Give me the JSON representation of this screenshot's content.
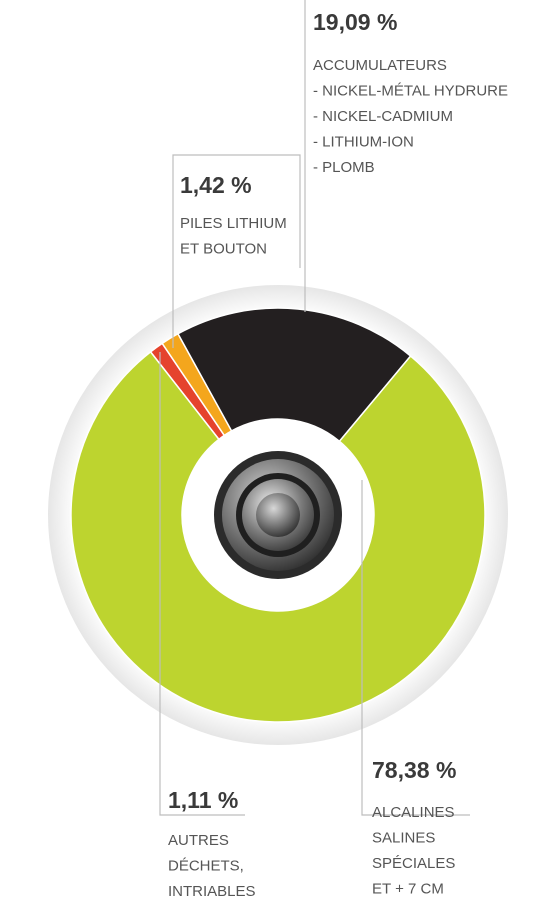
{
  "chart_data": {
    "type": "donut",
    "categories": [
      [
        "AUTRES",
        "DÉCHETS,",
        "INTRIABLES"
      ],
      [
        "PILES LITHIUM",
        "ET BOUTON"
      ],
      [
        "ACCUMULATEURS",
        "- NICKEL-MÉTAL HYDRURE",
        "- NICKEL-CADMIUM",
        "- LITHIUM-ION",
        "- PLOMB"
      ],
      [
        "ALCALINES",
        "SALINES",
        "SPÉCIALES",
        "ET + 7 CM"
      ]
    ],
    "values": [
      1.11,
      1.42,
      19.09,
      78.38
    ],
    "value_labels": [
      "1,11 %",
      "1,42 %",
      "19,09 %",
      "78,38 %"
    ],
    "colors": [
      "#e5432d",
      "#f4a61d",
      "#231f20",
      "#bdd42f"
    ]
  }
}
